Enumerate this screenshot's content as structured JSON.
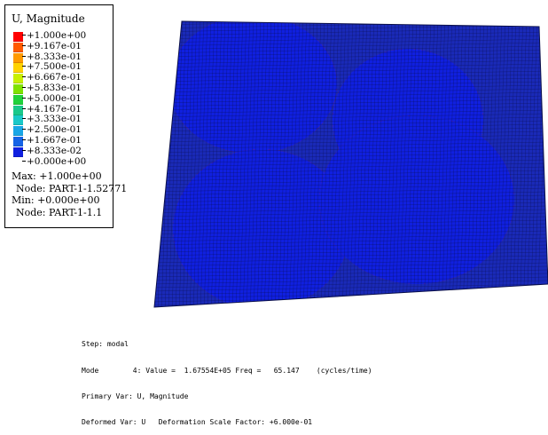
{
  "legend": {
    "title": "U, Magnitude",
    "labels": [
      "+1.000e+00",
      "+9.167e-01",
      "+8.333e-01",
      "+7.500e-01",
      "+6.667e-01",
      "+5.833e-01",
      "+5.000e-01",
      "+4.167e-01",
      "+3.333e-01",
      "+2.500e-01",
      "+1.667e-01",
      "+8.333e-02",
      "+0.000e+00"
    ],
    "colors": [
      "#ff0000",
      "#ff5a00",
      "#ff9a00",
      "#ffd200",
      "#c8f000",
      "#7ee200",
      "#1fd23a",
      "#19c88a",
      "#19c8c8",
      "#18a6e6",
      "#1563e6",
      "#1020e0"
    ],
    "max_label": "Max: +1.000e+00",
    "max_node": "Node: PART-1-1.52771",
    "min_label": "Min: +0.000e+00",
    "min_node": "Node: PART-1-1.1"
  },
  "contour_colors": {
    "base": "#1a2ab8",
    "mesh": "#0a0f4a"
  },
  "footer": {
    "step": "Step: modal",
    "mode": "Mode        4: Value =  1.67554E+05 Freq =   65.147    (cycles/time)",
    "primary": "Primary Var: U, Magnitude",
    "deformed": "Deformed Var: U   Deformation Scale Factor: +6.000e-01"
  }
}
